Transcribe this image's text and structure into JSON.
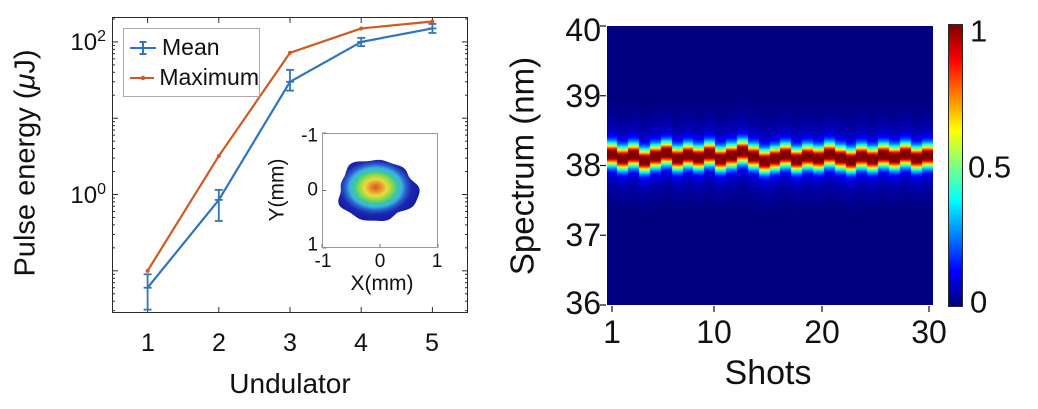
{
  "figure": {
    "background": "#ffffff"
  },
  "left_labels": {
    "ylabel_prefix": "Pulse energy (",
    "ylabel_mu": "μ",
    "ylabel_suffix": "J)",
    "ytick_top": {
      "base": "10",
      "exp": "2"
    },
    "ytick_bottom": {
      "base": "10",
      "exp": "0"
    },
    "xticks": [
      "1",
      "2",
      "3",
      "4",
      "5"
    ],
    "xlabel": "Undulator",
    "legend": {
      "mean": "Mean",
      "maximum": "Maximum"
    }
  },
  "inset_labels": {
    "yticks": [
      "-1",
      "0",
      "1"
    ],
    "xticks": [
      "-1",
      "0",
      "1"
    ],
    "xlabel": "X(mm)",
    "ylabel": "Y(mm)"
  },
  "right_labels": {
    "ylabel": "Spectrum (nm)",
    "yticks": [
      "40",
      "39",
      "38",
      "37",
      "36"
    ],
    "xticks": [
      "1",
      "10",
      "20",
      "30"
    ],
    "xlabel": "Shots",
    "colorbar": [
      "1",
      "0.5",
      "0"
    ]
  },
  "chart_data": [
    {
      "id": "pulse-energy-vs-undulator",
      "type": "line",
      "xlabel": "Undulator",
      "ylabel": "Pulse energy (μJ)",
      "yscale": "log",
      "x": [
        1,
        2,
        3,
        4,
        5
      ],
      "xlim": [
        0.5,
        5.5
      ],
      "ylim": [
        0.028,
        212
      ],
      "yticks_labeled": [
        1,
        100
      ],
      "legend_position": "top-left",
      "grid": false,
      "series": [
        {
          "name": "Mean",
          "color": "#2F75BD",
          "marker": "plus",
          "values": [
            0.06,
            0.85,
            30,
            100,
            150
          ],
          "err_low": [
            0.031,
            0.45,
            23,
            88,
            131
          ],
          "err_high": [
            0.09,
            1.15,
            43,
            113,
            172
          ]
        },
        {
          "name": "Maximum",
          "color": "#D05A24",
          "marker": "dot",
          "values": [
            0.1,
            3.2,
            72,
            150,
            185
          ]
        }
      ]
    },
    {
      "id": "beam-profile-inset",
      "type": "heatmap",
      "xlabel": "X(mm)",
      "ylabel": "Y(mm)",
      "xlim": [
        -1,
        1
      ],
      "ylim": [
        -1,
        1
      ],
      "y_axis_reversed": true,
      "xticks": [
        -1,
        0,
        1
      ],
      "yticks": [
        -1,
        0,
        1
      ],
      "colormap": "jet",
      "blob": {
        "center_x_mm": -0.05,
        "center_y_mm": 0.0,
        "radius_x_mm": 0.68,
        "radius_y_mm": 0.53,
        "gradient": [
          [
            0.0,
            "#D4581E"
          ],
          [
            0.13,
            "#E8942C"
          ],
          [
            0.25,
            "#E8DC3C"
          ],
          [
            0.37,
            "#90D848"
          ],
          [
            0.48,
            "#38C89E"
          ],
          [
            0.58,
            "#3FB2E4"
          ],
          [
            0.68,
            "#2A60CC"
          ],
          [
            0.8,
            "#1C26B0"
          ],
          [
            1.0,
            "#141B9E"
          ]
        ]
      }
    },
    {
      "id": "spectrum-vs-shots",
      "type": "heatmap",
      "xlabel": "Shots",
      "ylabel": "Spectrum (nm)",
      "xlim": [
        1,
        30
      ],
      "ylim": [
        36,
        40
      ],
      "xticks": [
        1,
        10,
        20,
        30
      ],
      "yticks": [
        40,
        39,
        38,
        37,
        36
      ],
      "colormap": "jet",
      "colorbar_ticks": [
        1,
        0.5,
        0
      ],
      "colorbar_range": [
        0,
        1
      ],
      "band_sigma_nm": 0.105,
      "halo_amplitude": 0.12,
      "halo_sigma_nm": 0.3,
      "band_center_nm": [
        38.16,
        38.1,
        38.15,
        38.07,
        38.13,
        38.18,
        38.1,
        38.15,
        38.11,
        38.17,
        38.09,
        38.14,
        38.2,
        38.13,
        38.06,
        38.1,
        38.15,
        38.08,
        38.13,
        38.1,
        38.16,
        38.11,
        38.07,
        38.13,
        38.09,
        38.15,
        38.11,
        38.16,
        38.1,
        38.14
      ]
    }
  ]
}
